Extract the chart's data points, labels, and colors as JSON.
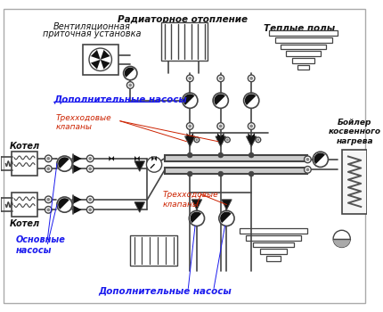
{
  "labels": {
    "radiator_heating": "Радиаторное отопление",
    "ventilation_line1": "Вентиляционная",
    "ventilation_line2": "приточная установка",
    "warm_floors": "Теплые полы",
    "boiler_indirect": "Бойлер\nкосвенного\nнагрева",
    "boiler1": "Котел",
    "boiler2": "Котел",
    "additional_pumps_top": "Дополнительные насосы",
    "three_way_top": "Трехходовые\nклапаны",
    "three_way_bottom": "Трехходовые\nклапаны",
    "main_pumps": "Основные\nнасосы",
    "additional_pumps_bottom": "Дополнительные насосы"
  },
  "colors": {
    "bg": "#ffffff",
    "line": "#444444",
    "blue": "#1a1aee",
    "red": "#cc2200",
    "black": "#111111",
    "gray_fill": "#cccccc",
    "light_fill": "#f5f5f5",
    "border": "#999999"
  }
}
